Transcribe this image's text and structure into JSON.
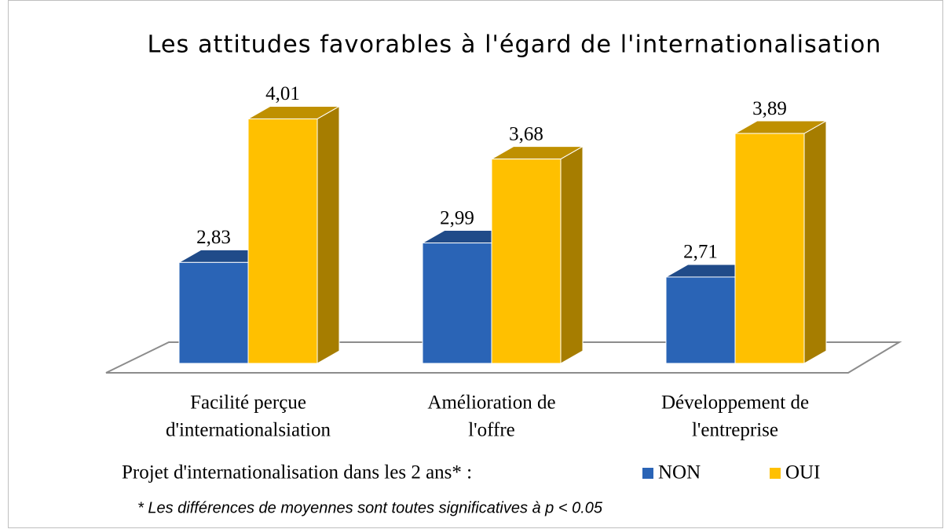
{
  "chart_data": {
    "type": "bar3d",
    "title": "Les attitudes favorables à l'égard de l'internationalisation",
    "categories": [
      [
        "Facilité perçue",
        "d'internationalsiation"
      ],
      [
        "Amélioration de",
        "l'offre"
      ],
      [
        "Développement de",
        "l'entreprise"
      ]
    ],
    "series": [
      {
        "name": "NON",
        "color": "#2a64b6",
        "values": [
          2.83,
          2.99,
          2.71
        ],
        "value_labels": [
          "2,83",
          "2,99",
          "2,71"
        ]
      },
      {
        "name": "OUI",
        "color": "#ffc000",
        "values": [
          4.01,
          3.68,
          3.89
        ],
        "value_labels": [
          "4,01",
          "3,68",
          "3,89"
        ]
      }
    ],
    "ylim": [
      2,
      4.5
    ],
    "legend_title": "Projet d'internationalisation dans les 2 ans* :",
    "note": "* Les différences de moyennes sont toutes significatives à p < 0.05"
  }
}
